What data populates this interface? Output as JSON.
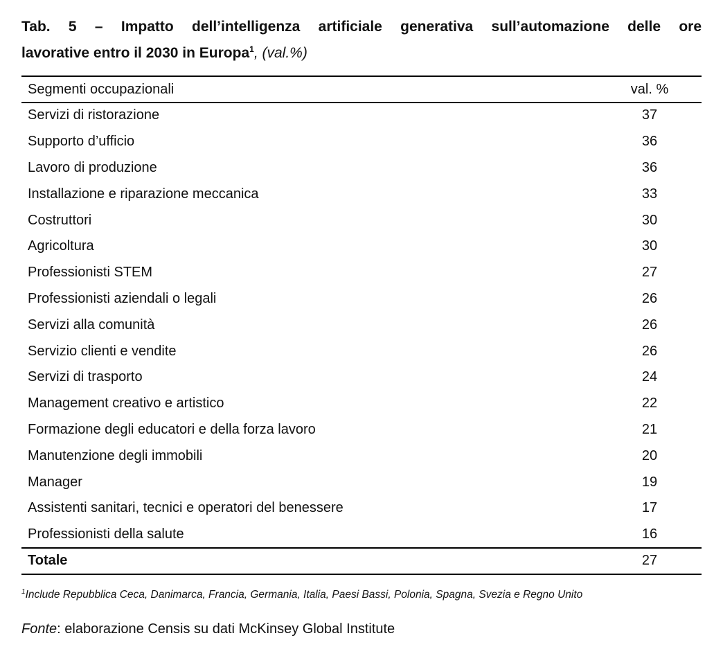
{
  "title": {
    "line1": "Tab. 5 – Impatto dell’intelligenza artificiale generativa sull’automazione delle ore",
    "line2": "lavorative entro il 2030 in Europa",
    "footnote_mark": "1",
    "unit": ", (val.%)"
  },
  "table": {
    "headers": [
      "Segmenti occupazionali",
      "val. %"
    ],
    "rows": [
      [
        "Servizi di ristorazione",
        "37"
      ],
      [
        "Supporto d’ufficio",
        "36"
      ],
      [
        "Lavoro di produzione",
        "36"
      ],
      [
        "Installazione e riparazione meccanica",
        "33"
      ],
      [
        "Costruttori",
        "30"
      ],
      [
        "Agricoltura",
        "30"
      ],
      [
        "Professionisti STEM",
        "27"
      ],
      [
        "Professionisti aziendali o legali",
        "26"
      ],
      [
        "Servizi alla comunità",
        "26"
      ],
      [
        "Servizio clienti e vendite",
        "26"
      ],
      [
        "Servizi di trasporto",
        "24"
      ],
      [
        "Management creativo e artistico",
        "22"
      ],
      [
        "Formazione degli educatori e della forza lavoro",
        "21"
      ],
      [
        "Manutenzione degli immobili",
        "20"
      ],
      [
        "Manager",
        "19"
      ],
      [
        "Assistenti sanitari, tecnici e operatori del benessere",
        "17"
      ],
      [
        "Professionisti della salute",
        "16"
      ]
    ],
    "total": [
      "Totale",
      "27"
    ]
  },
  "footnote": {
    "mark": "1",
    "text": "Include Repubblica Ceca, Danimarca, Francia, Germania, Italia, Paesi Bassi, Polonia, Spagna, Svezia e Regno Unito"
  },
  "source": {
    "label": "Fonte",
    "text": ": elaborazione Censis su dati McKinsey Global Institute"
  }
}
